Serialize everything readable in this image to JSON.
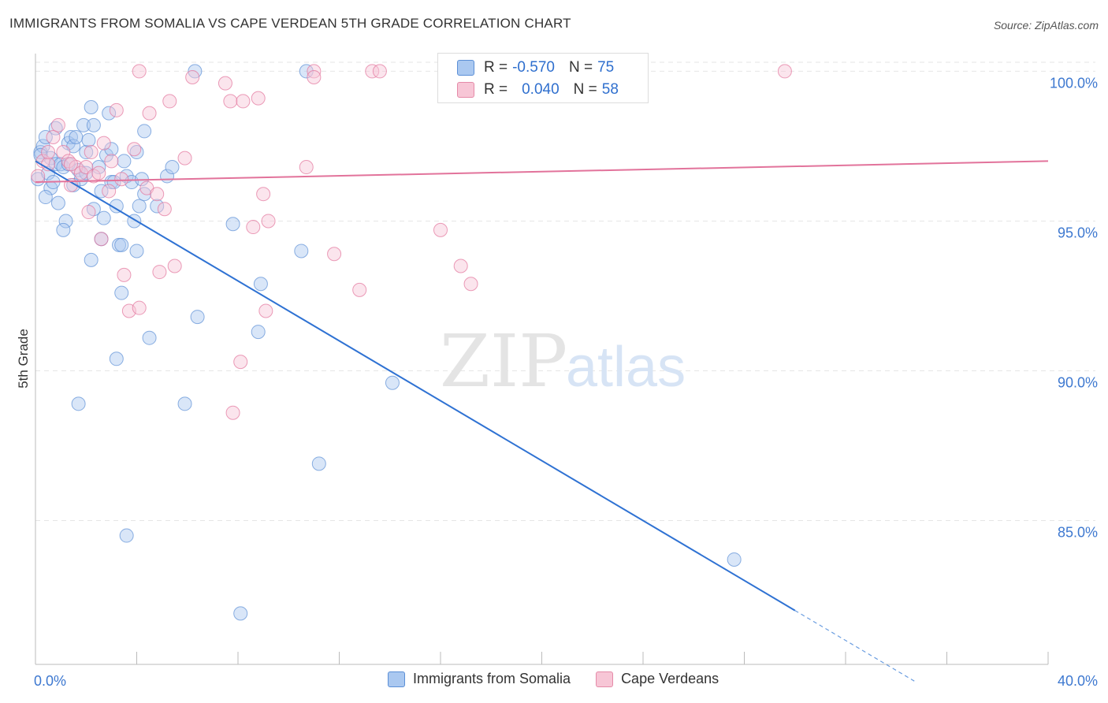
{
  "title": "IMMIGRANTS FROM SOMALIA VS CAPE VERDEAN 5TH GRADE CORRELATION CHART",
  "source": "Source: ZipAtlas.com",
  "watermark": {
    "zip": "ZIP",
    "atlas": "atlas"
  },
  "legend": {
    "r_label": "R =",
    "n_label": "N =",
    "rows": [
      {
        "r": "-0.570",
        "n": "75",
        "fill": "#aac8f0",
        "stroke": "#5b8fd6"
      },
      {
        "r": "0.040",
        "n": "58",
        "fill": "#f7c6d6",
        "stroke": "#e58aa8"
      }
    ]
  },
  "chart_data": {
    "type": "scatter",
    "xlabel": "",
    "ylabel": "5th Grade",
    "xlim": [
      0,
      40
    ],
    "ylim": [
      80.2,
      100.8
    ],
    "x_tick_labels": [
      "0.0%",
      "40.0%"
    ],
    "y_ticks": [
      85,
      90,
      95,
      100
    ],
    "y_tick_labels": [
      "85.0%",
      "90.0%",
      "95.0%",
      "100.0%"
    ],
    "grid": true,
    "series": [
      {
        "name": "Immigrants from Somalia",
        "color": "#5b8fd6",
        "fill": "#aac8f0",
        "trend": {
          "x0": 0,
          "y0": 97.0,
          "x1": 30.0,
          "y1": 82.0,
          "dash_to_x": 34.8
        },
        "points": [
          [
            0.1,
            96.4
          ],
          [
            0.2,
            97.3
          ],
          [
            0.3,
            97.5
          ],
          [
            0.4,
            97.8
          ],
          [
            0.5,
            96.6
          ],
          [
            0.6,
            97.1
          ],
          [
            0.6,
            96.1
          ],
          [
            0.7,
            96.3
          ],
          [
            0.8,
            96.9
          ],
          [
            0.8,
            98.1
          ],
          [
            0.9,
            95.6
          ],
          [
            1.0,
            96.9
          ],
          [
            1.1,
            96.8
          ],
          [
            1.2,
            95.0
          ],
          [
            1.3,
            97.6
          ],
          [
            1.4,
            97.8
          ],
          [
            1.5,
            97.5
          ],
          [
            1.6,
            97.8
          ],
          [
            1.7,
            96.7
          ],
          [
            1.8,
            96.4
          ],
          [
            1.9,
            98.2
          ],
          [
            2.0,
            97.3
          ],
          [
            2.1,
            97.7
          ],
          [
            2.2,
            98.8
          ],
          [
            2.3,
            98.2
          ],
          [
            2.5,
            96.8
          ],
          [
            2.6,
            96.0
          ],
          [
            2.8,
            97.2
          ],
          [
            2.9,
            98.6
          ],
          [
            3.0,
            96.3
          ],
          [
            3.1,
            96.3
          ],
          [
            3.2,
            95.5
          ],
          [
            3.3,
            94.2
          ],
          [
            3.5,
            97.0
          ],
          [
            3.6,
            96.5
          ],
          [
            3.8,
            96.3
          ],
          [
            4.0,
            97.3
          ],
          [
            4.1,
            95.5
          ],
          [
            4.2,
            96.4
          ],
          [
            4.3,
            98.0
          ],
          [
            4.8,
            95.5
          ],
          [
            5.2,
            96.5
          ],
          [
            5.4,
            96.8
          ],
          [
            0.2,
            97.2
          ],
          [
            1.1,
            94.7
          ],
          [
            2.2,
            93.7
          ],
          [
            2.7,
            95.1
          ],
          [
            3.4,
            94.2
          ],
          [
            3.4,
            92.6
          ],
          [
            3.9,
            95.0
          ],
          [
            4.3,
            95.9
          ],
          [
            2.6,
            94.4
          ],
          [
            6.3,
            100.0
          ],
          [
            10.7,
            100.0
          ],
          [
            6.4,
            91.8
          ],
          [
            7.8,
            94.9
          ],
          [
            8.9,
            92.9
          ],
          [
            8.8,
            91.3
          ],
          [
            10.5,
            94.0
          ],
          [
            3.2,
            90.4
          ],
          [
            4.5,
            91.1
          ],
          [
            5.9,
            88.9
          ],
          [
            1.7,
            88.9
          ],
          [
            11.2,
            86.9
          ],
          [
            14.1,
            89.6
          ],
          [
            3.6,
            84.5
          ],
          [
            8.1,
            81.9
          ],
          [
            27.6,
            83.7
          ],
          [
            2.3,
            95.4
          ],
          [
            1.3,
            96.9
          ],
          [
            3.0,
            97.4
          ],
          [
            0.4,
            95.8
          ],
          [
            4.0,
            94.0
          ],
          [
            2.0,
            96.6
          ],
          [
            1.5,
            96.2
          ]
        ]
      },
      {
        "name": "Cape Verdeans",
        "color": "#e2739b",
        "fill": "#f7c6d6",
        "trend": {
          "x0": 0,
          "y0": 96.3,
          "x1": 40,
          "y1": 97.0
        },
        "points": [
          [
            0.1,
            96.5
          ],
          [
            0.3,
            97.0
          ],
          [
            0.5,
            96.9
          ],
          [
            0.7,
            97.8
          ],
          [
            0.9,
            98.2
          ],
          [
            1.1,
            97.3
          ],
          [
            1.3,
            97.0
          ],
          [
            1.4,
            96.2
          ],
          [
            1.6,
            96.8
          ],
          [
            1.8,
            96.6
          ],
          [
            2.0,
            96.8
          ],
          [
            2.2,
            97.3
          ],
          [
            2.3,
            96.5
          ],
          [
            2.5,
            96.6
          ],
          [
            2.7,
            97.6
          ],
          [
            2.9,
            96.0
          ],
          [
            3.2,
            98.7
          ],
          [
            3.5,
            93.2
          ],
          [
            3.7,
            92.0
          ],
          [
            3.9,
            97.4
          ],
          [
            4.1,
            92.1
          ],
          [
            4.4,
            96.1
          ],
          [
            4.5,
            98.6
          ],
          [
            4.8,
            95.9
          ],
          [
            4.9,
            93.3
          ],
          [
            5.1,
            95.4
          ],
          [
            5.3,
            99.0
          ],
          [
            5.5,
            93.5
          ],
          [
            5.9,
            97.1
          ],
          [
            6.2,
            99.8
          ],
          [
            7.5,
            99.6
          ],
          [
            7.7,
            99.0
          ],
          [
            8.2,
            99.0
          ],
          [
            8.8,
            99.1
          ],
          [
            9.0,
            95.9
          ],
          [
            8.1,
            90.3
          ],
          [
            7.8,
            88.6
          ],
          [
            8.6,
            94.8
          ],
          [
            9.2,
            95.0
          ],
          [
            9.1,
            92.0
          ],
          [
            10.7,
            96.8
          ],
          [
            11.0,
            100.0
          ],
          [
            11.0,
            99.8
          ],
          [
            11.8,
            93.9
          ],
          [
            12.8,
            92.7
          ],
          [
            13.3,
            100.0
          ],
          [
            13.6,
            100.0
          ],
          [
            16.0,
            94.7
          ],
          [
            16.8,
            93.5
          ],
          [
            17.2,
            92.9
          ],
          [
            29.6,
            100.0
          ],
          [
            4.1,
            100.0
          ],
          [
            3.0,
            97.0
          ],
          [
            2.1,
            95.3
          ],
          [
            3.4,
            96.4
          ],
          [
            2.6,
            94.4
          ],
          [
            1.4,
            96.9
          ],
          [
            0.5,
            97.3
          ]
        ]
      }
    ]
  }
}
